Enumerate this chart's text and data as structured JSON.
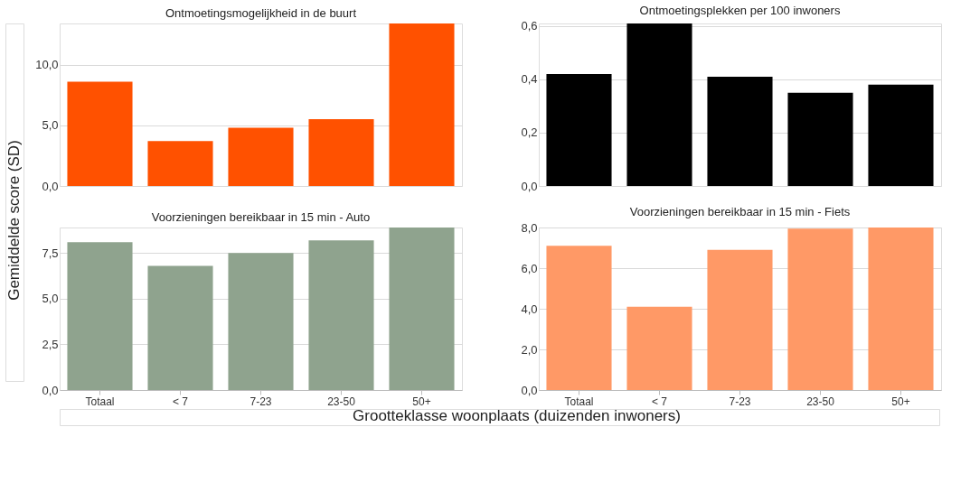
{
  "chart_data": [
    {
      "type": "bar",
      "title": "Ontmoetingsmogelijkheid in de buurt",
      "ylabel": "Gemiddelde score (SD)",
      "categories": [
        null,
        null,
        null,
        null,
        null
      ],
      "values": [
        8.6,
        3.7,
        4.8,
        5.5,
        13.4
      ],
      "color": "#ff5100",
      "ylim": [
        0,
        13.4
      ],
      "yticks": [
        {
          "value": 0,
          "label": "0,0"
        },
        {
          "value": 5,
          "label": "5,0"
        },
        {
          "value": 10,
          "label": "10,0"
        }
      ],
      "grid": "y",
      "tick_labels": "y"
    },
    {
      "type": "bar",
      "title": "Ontmoetingsplekken per 100 inwoners",
      "categories": [
        null,
        null,
        null,
        null,
        null
      ],
      "values": [
        0.42,
        0.61,
        0.41,
        0.35,
        0.38
      ],
      "color": "#000000",
      "ylim": [
        0,
        0.61
      ],
      "yticks": [
        {
          "value": 0,
          "label": "0,0"
        },
        {
          "value": 0.2,
          "label": "0,2"
        },
        {
          "value": 0.4,
          "label": "0,4"
        },
        {
          "value": 0.6,
          "label": "0,6"
        }
      ],
      "grid": "y",
      "tick_labels": "y"
    },
    {
      "type": "bar",
      "title": "Voorzieningen bereikbaar in 15 min - Auto",
      "xlabel": "Grootteklasse woonplaats (duizenden inwoners)",
      "categories": [
        "Totaal",
        "< 7",
        "7-23",
        "23-50",
        "50+"
      ],
      "values": [
        8.1,
        6.8,
        7.5,
        8.2,
        8.9
      ],
      "color": "#8fa38e",
      "ylim": [
        0,
        8.9
      ],
      "yticks": [
        {
          "value": 0,
          "label": "0,0"
        },
        {
          "value": 2.5,
          "label": "2,5"
        },
        {
          "value": 5,
          "label": "5,0"
        },
        {
          "value": 7.5,
          "label": "7,5"
        }
      ],
      "grid": "y"
    },
    {
      "type": "bar",
      "title": "Voorzieningen bereikbaar in 15 min - Fiets",
      "categories": [
        "Totaal",
        "< 7",
        "7-23",
        "23-50",
        "50+"
      ],
      "values": [
        7.1,
        4.1,
        6.9,
        7.95,
        8.0
      ],
      "color": "#ff9966",
      "ylim": [
        0,
        8.0
      ],
      "yticks": [
        {
          "value": 0,
          "label": "0,0"
        },
        {
          "value": 2,
          "label": "2,0"
        },
        {
          "value": 4,
          "label": "4,0"
        },
        {
          "value": 6,
          "label": "6,0"
        },
        {
          "value": 8,
          "label": "8,0"
        }
      ],
      "grid": "y"
    }
  ]
}
